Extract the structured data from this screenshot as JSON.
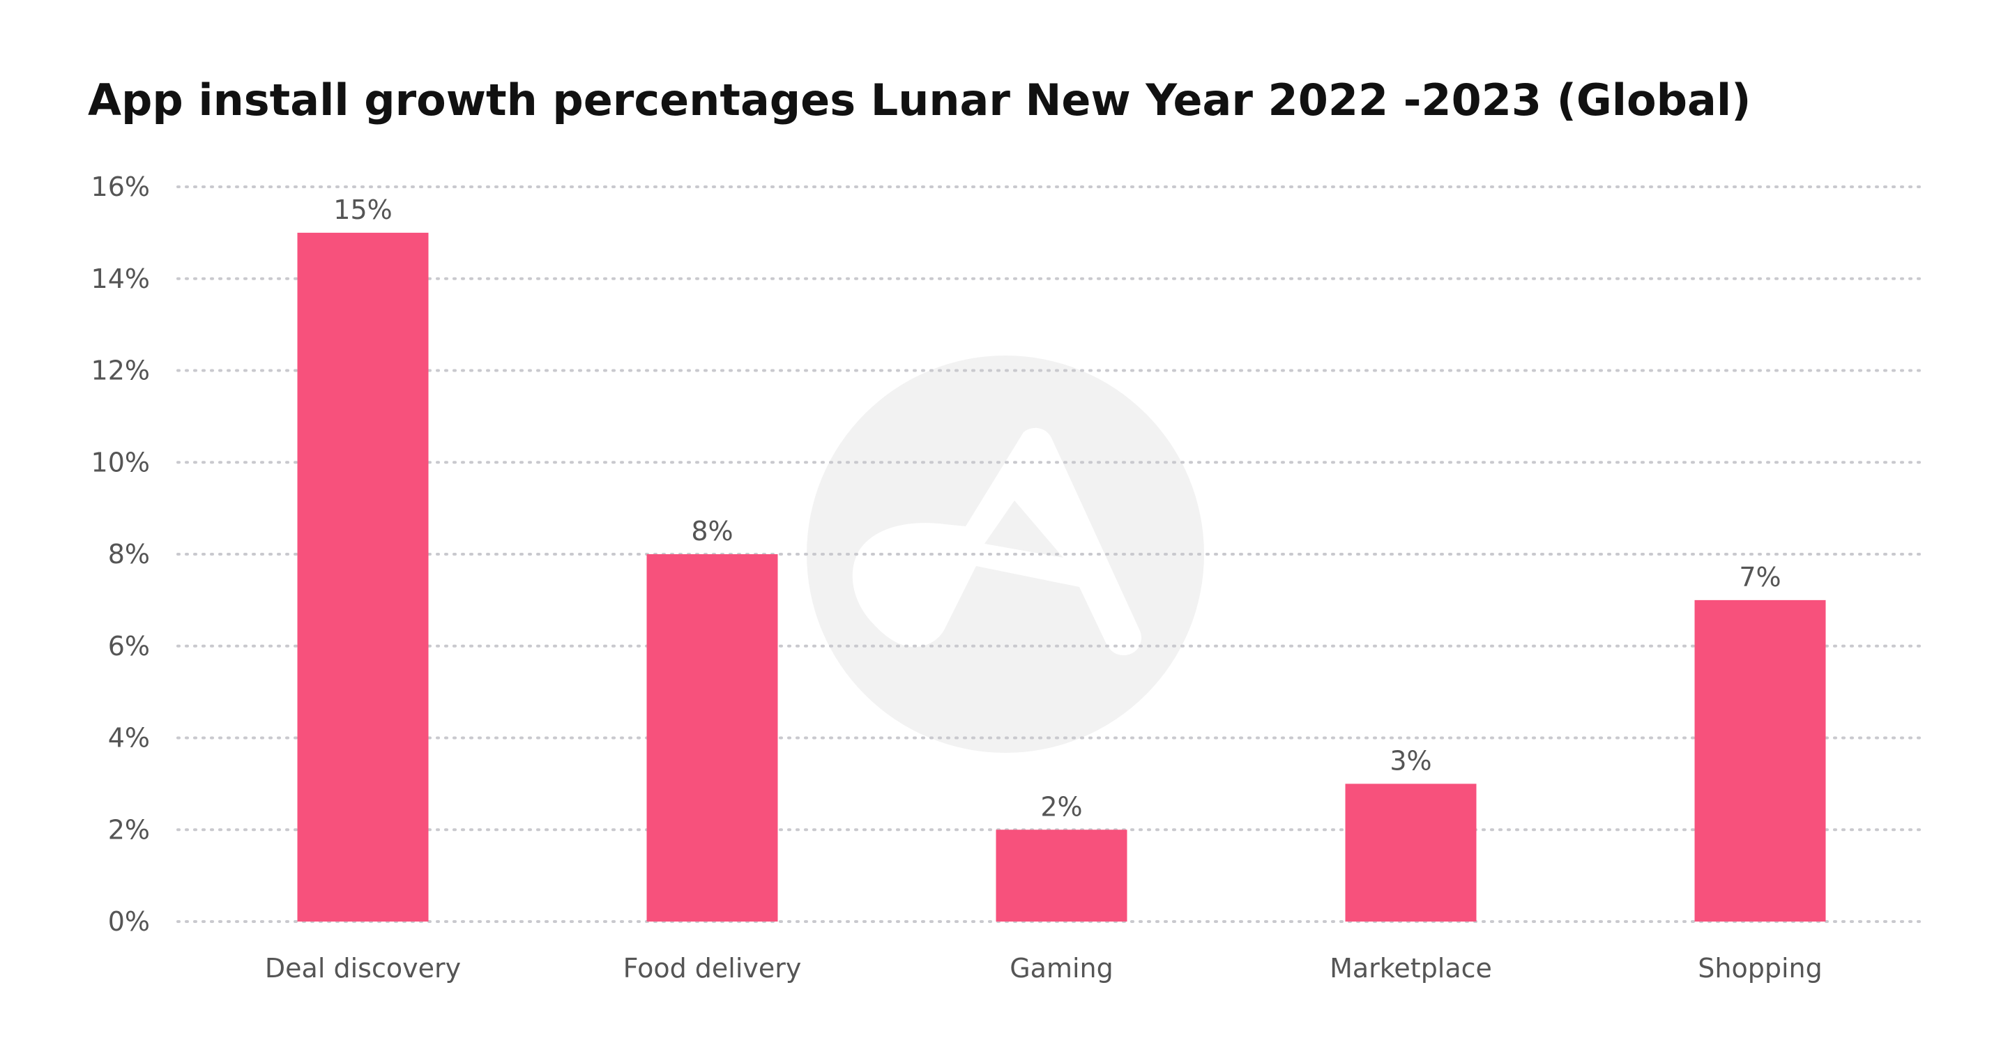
{
  "chart_data": {
    "type": "bar",
    "title": "App install growth percentages Lunar New Year 2022 -2023 (Global)",
    "xlabel": "",
    "ylabel": "",
    "categories": [
      "Deal discovery",
      "Food delivery",
      "Gaming",
      "Marketplace",
      "Shopping"
    ],
    "values": [
      15,
      8,
      2,
      3,
      7
    ],
    "data_labels": [
      "15%",
      "8%",
      "2%",
      "3%",
      "7%"
    ],
    "ylim": [
      0,
      16
    ],
    "yticks": [
      0,
      2,
      4,
      6,
      8,
      10,
      12,
      14,
      16
    ],
    "ytick_labels": [
      "0%",
      "2%",
      "4%",
      "6%",
      "8%",
      "10%",
      "12%",
      "14%",
      "16%"
    ],
    "grid": true,
    "legend": "none",
    "colors": {
      "bar": "#f7517c",
      "watermark": "#f2f2f2",
      "grid": "#c9c9ce"
    },
    "watermark_icon": "brand-logo-watermark"
  }
}
